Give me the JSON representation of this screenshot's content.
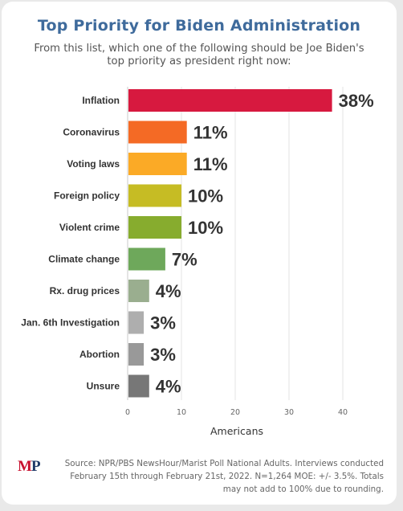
{
  "header": {
    "title": "Top Priority for Biden Administration",
    "subtitle": "From this list, which one of the following should be Joe Biden's top priority as president right now:"
  },
  "footer": {
    "logo_m": "M",
    "logo_p": "P",
    "source": "Source: NPR/PBS NewsHour/Marist Poll National Adults. Interviews conducted February 15th through February 21st, 2022. N=1,264 MOE: +/- 3.5%. Totals may not add to 100% due to rounding."
  },
  "chart_data": {
    "type": "bar",
    "orientation": "horizontal",
    "categories": [
      "Inflation",
      "Coronavirus",
      "Voting laws",
      "Foreign policy",
      "Violent crime",
      "Climate change",
      "Rx. drug prices",
      "Jan. 6th Investigation",
      "Abortion",
      "Unsure"
    ],
    "values": [
      38,
      11,
      11,
      10,
      10,
      7,
      4,
      3,
      3,
      4
    ],
    "data_labels": [
      "38%",
      "11%",
      "11%",
      "10%",
      "10%",
      "7%",
      "4%",
      "3%",
      "3%",
      "4%"
    ],
    "colors": [
      "#d7193f",
      "#f46a25",
      "#fbaa26",
      "#c6bc24",
      "#87ac2e",
      "#6ea85b",
      "#9aae8f",
      "#aeaeae",
      "#999999",
      "#777777"
    ],
    "xlabel": "Americans",
    "xlim": [
      0,
      40
    ],
    "xticks": [
      0,
      10,
      20,
      30,
      40
    ],
    "grid": true
  }
}
